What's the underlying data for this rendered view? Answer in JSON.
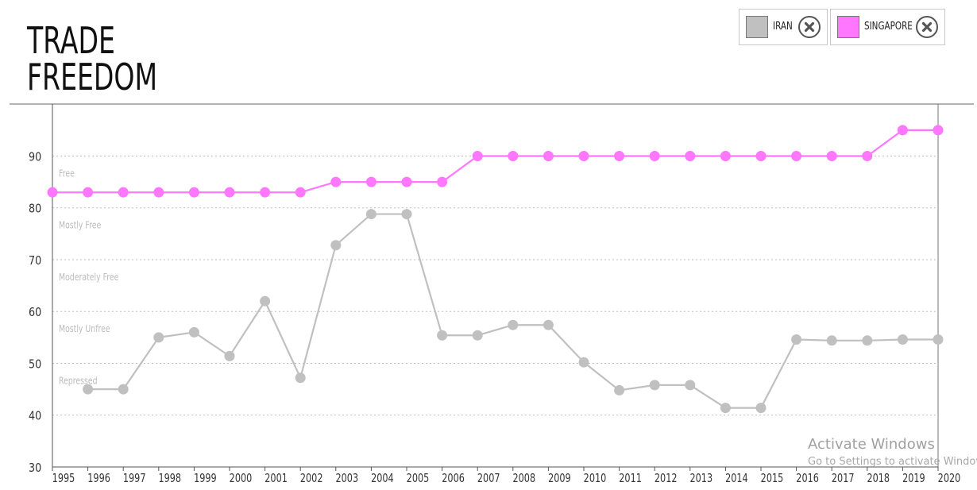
{
  "title_line1": "TRADE",
  "title_line2": "FREEDOM",
  "legend": [
    {
      "label": "IRAN",
      "color": "#c0c0c0"
    },
    {
      "label": "SINGAPORE",
      "color": "#ff77ff"
    }
  ],
  "watermark": {
    "line1": "Activate Windows",
    "line2": "Go to Settings to activate Windows."
  },
  "chart_data": {
    "type": "line",
    "title": "TRADE FREEDOM",
    "x": [
      "1995",
      "1996",
      "1997",
      "1998",
      "1999",
      "2000",
      "2001",
      "2002",
      "2003",
      "2004",
      "2005",
      "2006",
      "2007",
      "2008",
      "2009",
      "2010",
      "2011",
      "2012",
      "2013",
      "2014",
      "2015",
      "2016",
      "2017",
      "2018",
      "2019",
      "2020"
    ],
    "ylim": [
      30,
      98
    ],
    "yticks": [
      30,
      40,
      50,
      60,
      70,
      80,
      90
    ],
    "grid": "dotted-horizontal",
    "bands": [
      {
        "label": "Free",
        "value": 90
      },
      {
        "label": "Mostly Free",
        "value": 80
      },
      {
        "label": "Moderately Free",
        "value": 70
      },
      {
        "label": "Mostly Unfree",
        "value": 60
      },
      {
        "label": "Repressed",
        "value": 50
      }
    ],
    "series": [
      {
        "name": "IRAN",
        "color": "#c0c0c0",
        "values": [
          null,
          45,
          45,
          55,
          56,
          51.4,
          62,
          47.2,
          72.8,
          78.8,
          78.8,
          55.4,
          55.4,
          57.4,
          57.4,
          50.2,
          44.8,
          45.8,
          45.8,
          41.4,
          41.4,
          54.6,
          54.4,
          54.4,
          54.6,
          54.6
        ]
      },
      {
        "name": "SINGAPORE",
        "color": "#ff77ff",
        "values": [
          83,
          83,
          83,
          83,
          83,
          83,
          83,
          83,
          85,
          85,
          85,
          85,
          90,
          90,
          90,
          90,
          90,
          90,
          90,
          90,
          90,
          90,
          90,
          90,
          95,
          95
        ]
      }
    ]
  }
}
